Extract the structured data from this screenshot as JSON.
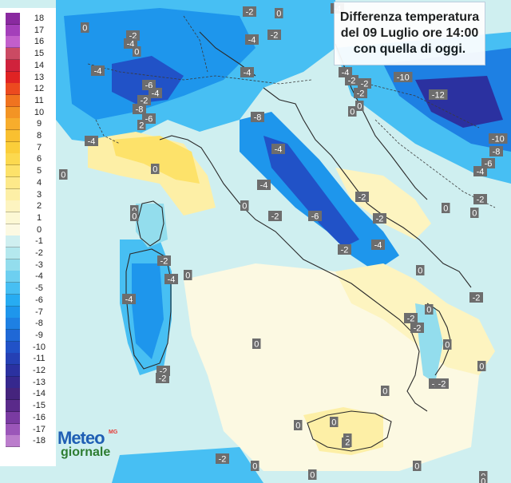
{
  "title_lines": [
    "Differenza temperatura",
    "del 09 Luglio ore 14:00",
    "con quella di oggi."
  ],
  "legend": {
    "entries": [
      {
        "label": "18",
        "color": "#8a2aa0"
      },
      {
        "label": "17",
        "color": "#a43fba"
      },
      {
        "label": "16",
        "color": "#c25fcb"
      },
      {
        "label": "15",
        "color": "#cb4a63"
      },
      {
        "label": "14",
        "color": "#d0223c"
      },
      {
        "label": "13",
        "color": "#e02323"
      },
      {
        "label": "12",
        "color": "#ec4a1f"
      },
      {
        "label": "11",
        "color": "#f0731f"
      },
      {
        "label": "10",
        "color": "#f39424"
      },
      {
        "label": "9",
        "color": "#f7ad2c"
      },
      {
        "label": "8",
        "color": "#f9c030"
      },
      {
        "label": "7",
        "color": "#fbce3a"
      },
      {
        "label": "6",
        "color": "#fcd94f"
      },
      {
        "label": "5",
        "color": "#fde26a"
      },
      {
        "label": "4",
        "color": "#fde98a"
      },
      {
        "label": "3",
        "color": "#fdefa6"
      },
      {
        "label": "2",
        "color": "#fdf4c0"
      },
      {
        "label": "1",
        "color": "#fcf8d4"
      },
      {
        "label": "0",
        "color": "#fcf9e2"
      },
      {
        "label": "-1",
        "color": "#cfeff0"
      },
      {
        "label": "-2",
        "color": "#b4e8ee"
      },
      {
        "label": "-3",
        "color": "#93dded"
      },
      {
        "label": "-4",
        "color": "#6dcff0"
      },
      {
        "label": "-5",
        "color": "#47bff3"
      },
      {
        "label": "-6",
        "color": "#27acf2"
      },
      {
        "label": "-7",
        "color": "#1e96ec"
      },
      {
        "label": "-8",
        "color": "#1e80e3"
      },
      {
        "label": "-9",
        "color": "#1f68d6"
      },
      {
        "label": "-10",
        "color": "#2152c7"
      },
      {
        "label": "-11",
        "color": "#2540b4"
      },
      {
        "label": "-12",
        "color": "#2b31a0"
      },
      {
        "label": "-13",
        "color": "#36288e"
      },
      {
        "label": "-14",
        "color": "#45247d"
      },
      {
        "label": "-15",
        "color": "#5a2a8a"
      },
      {
        "label": "-16",
        "color": "#7a3ba2"
      },
      {
        "label": "-17",
        "color": "#9b56b9"
      },
      {
        "label": "-18",
        "color": "#bb7dcc"
      }
    ]
  },
  "labels": [
    "-2",
    "-4",
    "0",
    "-2",
    "-2",
    "-4",
    "-4",
    "0",
    "-4",
    "-4",
    "-10",
    "-4",
    "-2",
    "-6",
    "-4",
    "-12",
    "-2",
    "0",
    "-8",
    "0",
    "-6",
    "2",
    "-8",
    "-4",
    "-10",
    "-8",
    "-4",
    "-6",
    "-4",
    "0",
    "0",
    "-4",
    "-2",
    "-2",
    "0",
    "0",
    "0",
    "-2",
    "-6",
    "-2",
    "-2",
    "-4",
    "-4",
    "-2",
    "0",
    "-4",
    "0",
    "-2",
    "-2",
    "0",
    "0",
    "-2",
    "-2",
    "0",
    "0",
    "0",
    "0",
    "-2",
    "0",
    "0",
    "0",
    "-2",
    "0",
    "2",
    "0",
    "0",
    "-2",
    "-2",
    "0",
    "-2",
    "0",
    "0",
    "2",
    "0",
    "-2"
  ],
  "logo": {
    "line1": "Meteo",
    "line2": "giornale",
    "superscript": "MG"
  }
}
